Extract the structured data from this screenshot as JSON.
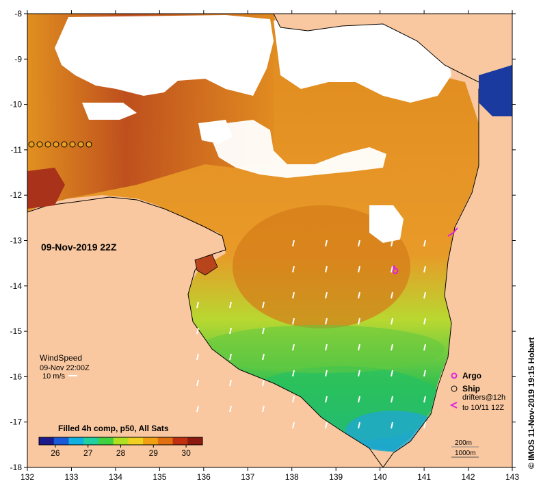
{
  "map": {
    "datetime": "09-Nov-2019 22Z",
    "credit": "© IMOS 11-Nov-2019 19:15 Hobart",
    "lon_ticks": [
      "132",
      "133",
      "134",
      "135",
      "136",
      "137",
      "138",
      "139",
      "140",
      "141",
      "142",
      "143"
    ],
    "lat_ticks": [
      "-8",
      "-9",
      "-10",
      "-11",
      "-12",
      "-13",
      "-14",
      "-15",
      "-16",
      "-17",
      "-18"
    ],
    "lon_range": [
      132,
      143
    ],
    "lat_range": [
      -18,
      -8
    ],
    "colors": {
      "land": "#f9c8a0",
      "cloud": "#ffffff",
      "coast": "#000000",
      "argo": "#e020e0",
      "drifter": "#e020e0"
    }
  },
  "wind": {
    "title": "WindSpeed",
    "time": "09-Nov 22:00Z",
    "scale": "10 m/s"
  },
  "legend": {
    "argo": "Argo",
    "ship": "Ship",
    "drifters_line1": "drifters@12h",
    "drifters_line2": "to 10/11 12Z",
    "depth_200": "200m",
    "depth_1000": "1000m"
  },
  "colorbar": {
    "title": "Filled 4h comp, p50, All Sats",
    "ticks": [
      "26",
      "27",
      "28",
      "29",
      "30"
    ],
    "min": 25.5,
    "max": 30.5,
    "stops": [
      "#1a1a8c",
      "#1a5ad8",
      "#10b0e0",
      "#20d0a0",
      "#40d040",
      "#b0e020",
      "#f0d020",
      "#f0a010",
      "#e07010",
      "#c03010",
      "#8c1a10"
    ]
  }
}
